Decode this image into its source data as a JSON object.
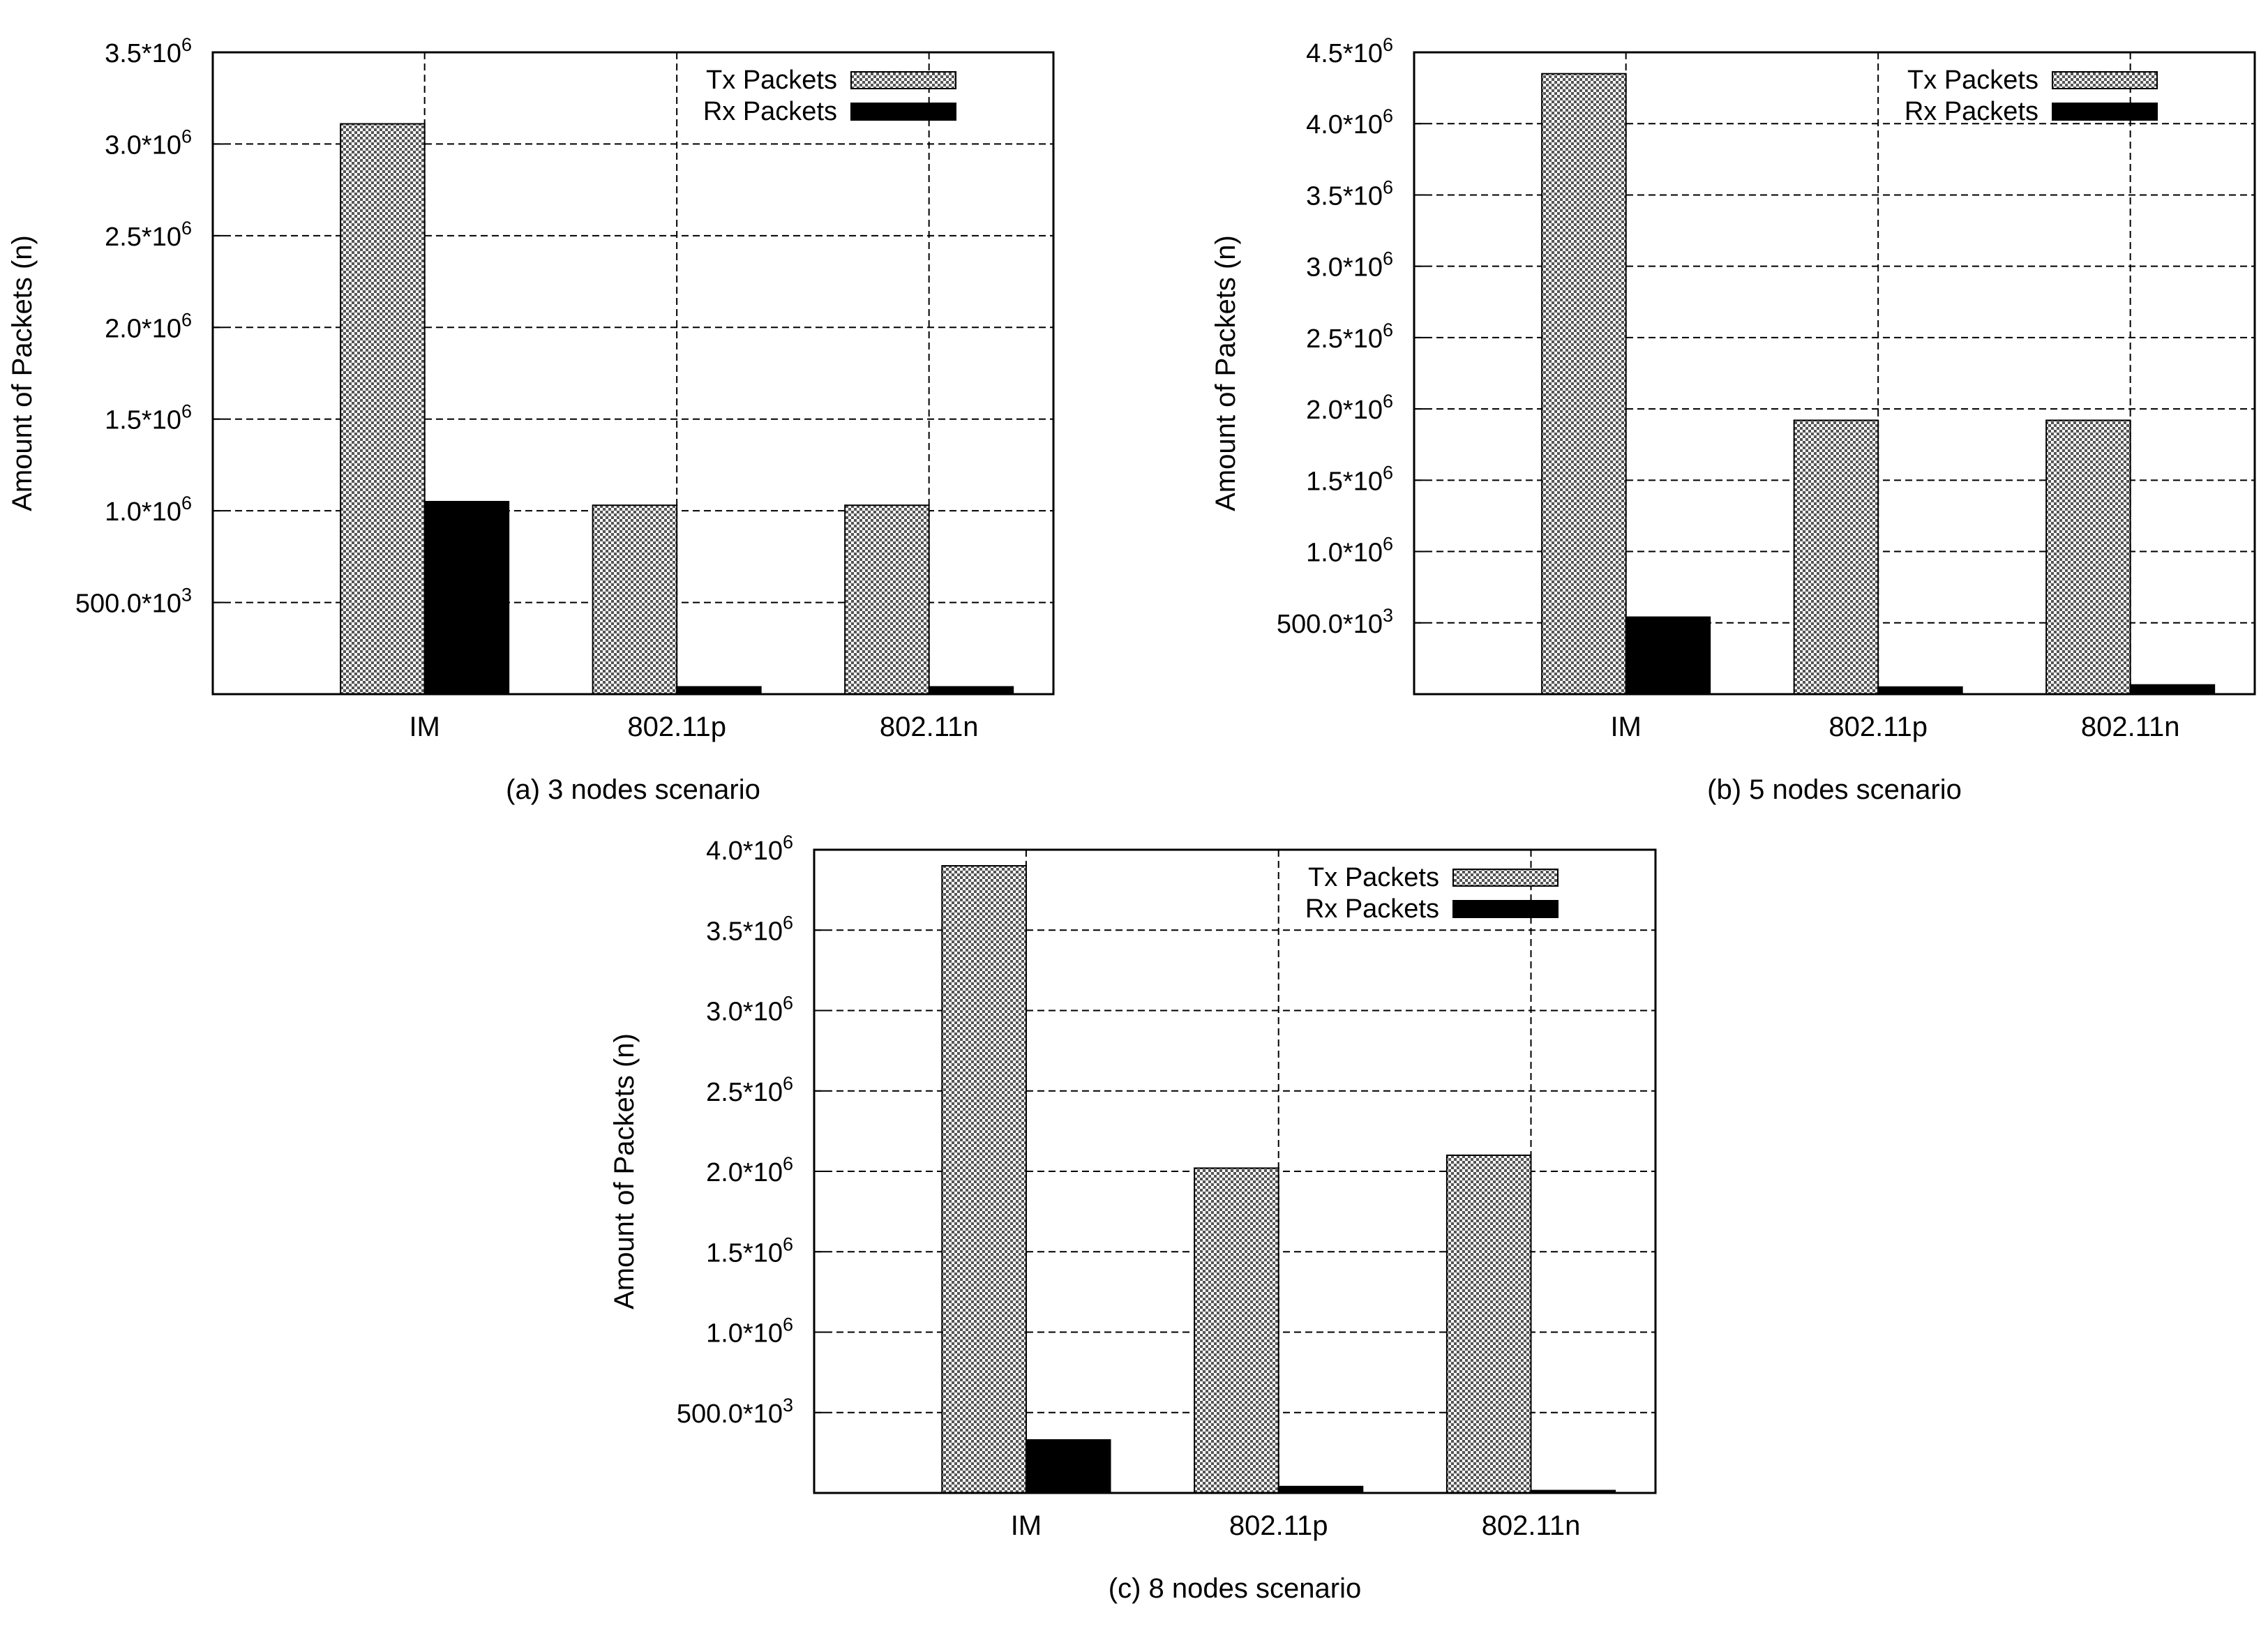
{
  "chart_data": [
    {
      "type": "bar",
      "caption": "(a) 3 nodes scenario",
      "ylabel": "Amount of Packets (n)",
      "xlabel": "",
      "categories": [
        "IM",
        "802.11p",
        "802.11n"
      ],
      "ylim": [
        0,
        3500000
      ],
      "yticks": [
        {
          "value": 500000,
          "base": "500.0*10",
          "exp": "3"
        },
        {
          "value": 1000000,
          "base": "1.0*10",
          "exp": "6"
        },
        {
          "value": 1500000,
          "base": "1.5*10",
          "exp": "6"
        },
        {
          "value": 2000000,
          "base": "2.0*10",
          "exp": "6"
        },
        {
          "value": 2500000,
          "base": "2.5*10",
          "exp": "6"
        },
        {
          "value": 3000000,
          "base": "3.0*10",
          "exp": "6"
        },
        {
          "value": 3500000,
          "base": "3.5*10",
          "exp": "6"
        }
      ],
      "grid": true,
      "legend_position": "top-right",
      "series": [
        {
          "name": "Tx Packets",
          "pattern": "checkered",
          "values": [
            3110000,
            1030000,
            1030000
          ]
        },
        {
          "name": "Rx Packets",
          "pattern": "solid",
          "values": [
            1050000,
            40000,
            40000
          ]
        }
      ]
    },
    {
      "type": "bar",
      "caption": "(b) 5 nodes scenario",
      "ylabel": "Amount of Packets (n)",
      "xlabel": "",
      "categories": [
        "IM",
        "802.11p",
        "802.11n"
      ],
      "ylim": [
        0,
        4500000
      ],
      "yticks": [
        {
          "value": 500000,
          "base": "500.0*10",
          "exp": "3"
        },
        {
          "value": 1000000,
          "base": "1.0*10",
          "exp": "6"
        },
        {
          "value": 1500000,
          "base": "1.5*10",
          "exp": "6"
        },
        {
          "value": 2000000,
          "base": "2.0*10",
          "exp": "6"
        },
        {
          "value": 2500000,
          "base": "2.5*10",
          "exp": "6"
        },
        {
          "value": 3000000,
          "base": "3.0*10",
          "exp": "6"
        },
        {
          "value": 3500000,
          "base": "3.5*10",
          "exp": "6"
        },
        {
          "value": 4000000,
          "base": "4.0*10",
          "exp": "6"
        },
        {
          "value": 4500000,
          "base": "4.5*10",
          "exp": "6"
        }
      ],
      "grid": true,
      "legend_position": "top-right",
      "series": [
        {
          "name": "Tx Packets",
          "pattern": "checkered",
          "values": [
            4350000,
            1920000,
            1920000
          ]
        },
        {
          "name": "Rx Packets",
          "pattern": "solid",
          "values": [
            540000,
            50000,
            65000
          ]
        }
      ]
    },
    {
      "type": "bar",
      "caption": "(c) 8 nodes scenario",
      "ylabel": "Amount of Packets (n)",
      "xlabel": "",
      "categories": [
        "IM",
        "802.11p",
        "802.11n"
      ],
      "ylim": [
        0,
        4000000
      ],
      "yticks": [
        {
          "value": 500000,
          "base": "500.0*10",
          "exp": "3"
        },
        {
          "value": 1000000,
          "base": "1.0*10",
          "exp": "6"
        },
        {
          "value": 1500000,
          "base": "1.5*10",
          "exp": "6"
        },
        {
          "value": 2000000,
          "base": "2.0*10",
          "exp": "6"
        },
        {
          "value": 2500000,
          "base": "2.5*10",
          "exp": "6"
        },
        {
          "value": 3000000,
          "base": "3.0*10",
          "exp": "6"
        },
        {
          "value": 3500000,
          "base": "3.5*10",
          "exp": "6"
        },
        {
          "value": 4000000,
          "base": "4.0*10",
          "exp": "6"
        }
      ],
      "grid": true,
      "legend_position": "top-right",
      "series": [
        {
          "name": "Tx Packets",
          "pattern": "checkered",
          "values": [
            3900000,
            2020000,
            2100000
          ]
        },
        {
          "name": "Rx Packets",
          "pattern": "solid",
          "values": [
            330000,
            40000,
            15000
          ]
        }
      ]
    }
  ],
  "colors": {
    "tx_fill_light": "#ffffff",
    "tx_fill_dark": "#555555",
    "rx_fill": "#000000",
    "grid": "#000000"
  }
}
